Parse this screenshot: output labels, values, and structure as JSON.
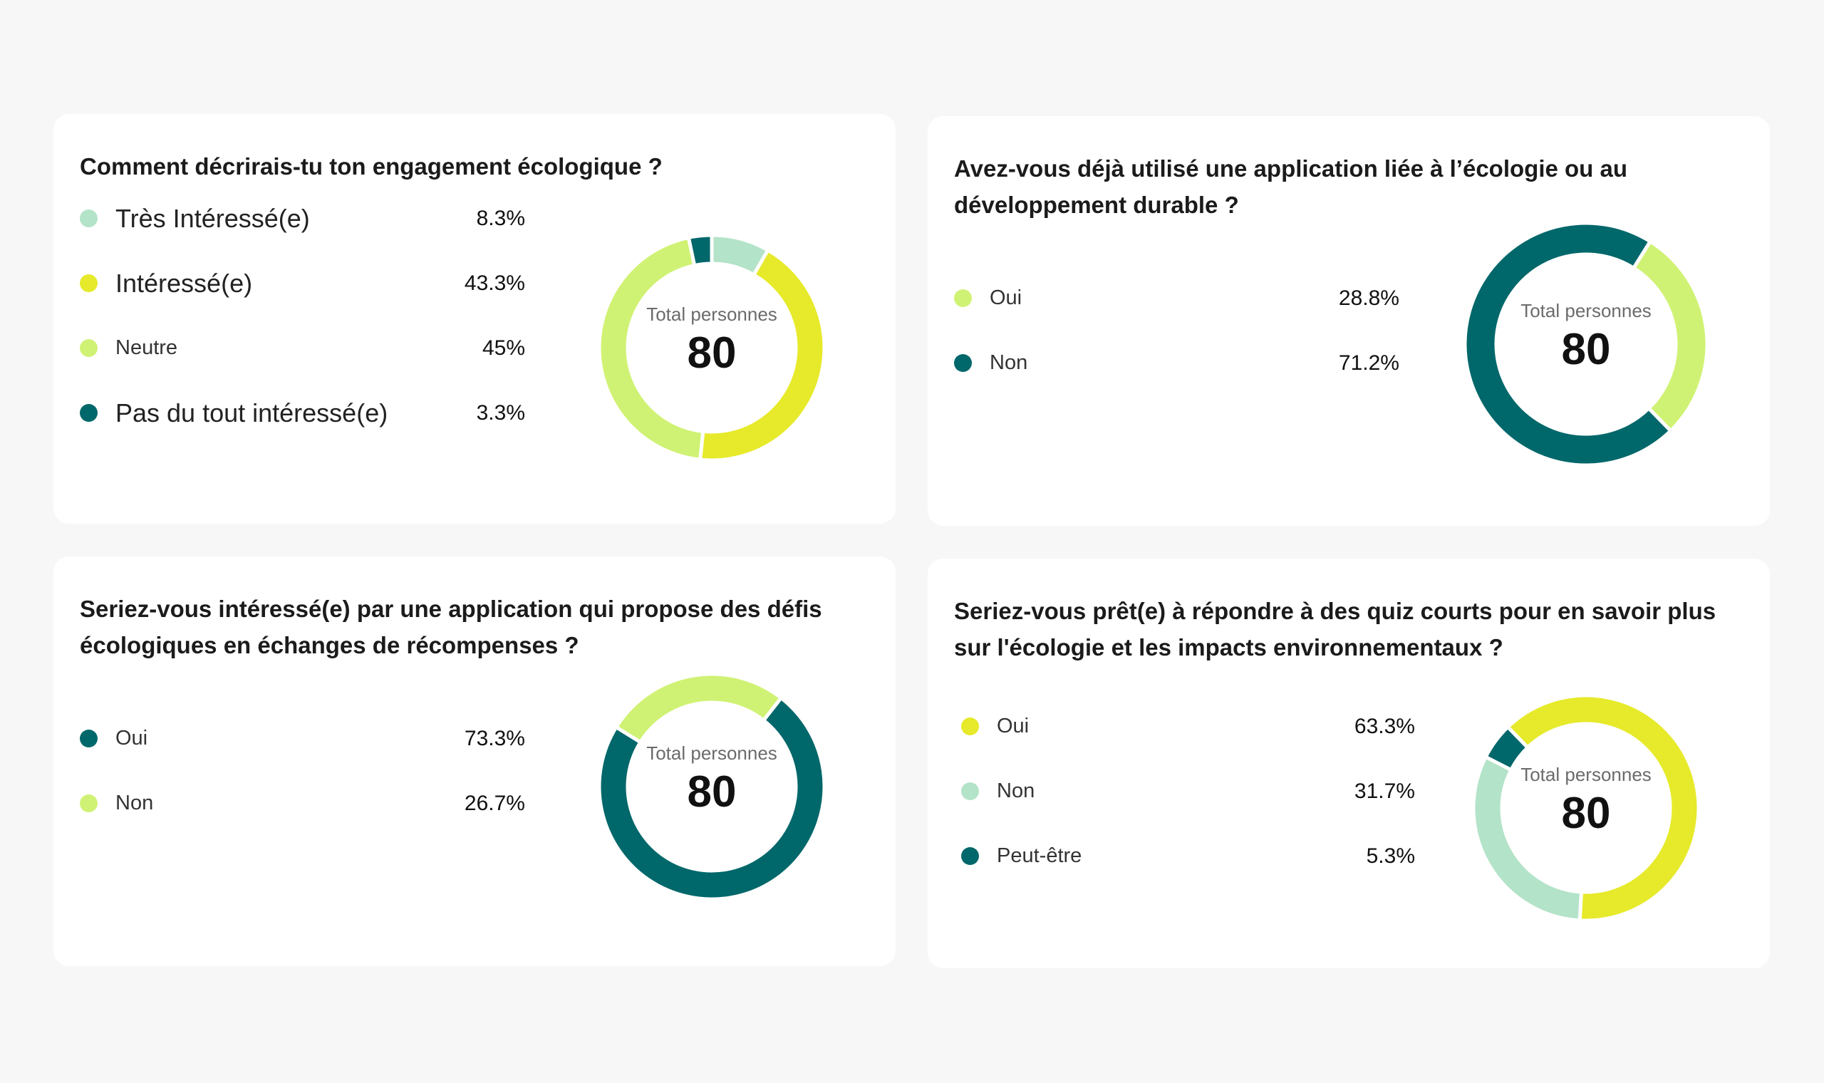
{
  "center_label": "Total personnes",
  "colors": {
    "mint": "#b3e3c8",
    "yellow": "#e6ea2a",
    "lime": "#d0f274",
    "teal": "#00676a"
  },
  "chart_data": [
    {
      "type": "pie",
      "title": "Comment décrirais-tu ton engagement écologique ?",
      "total": "80",
      "series": [
        {
          "name": "Très Intéressé(e)",
          "label": "8.3%",
          "value": 8.3,
          "color": "#b3e3c8"
        },
        {
          "name": "Intéressé(e)",
          "label": "43.3%",
          "value": 43.3,
          "color": "#e6ea2a"
        },
        {
          "name": "Neutre",
          "label": "45%",
          "value": 45,
          "color": "#d0f274"
        },
        {
          "name": "Pas du tout intéressé(e)",
          "label": "3.3%",
          "value": 3.3,
          "color": "#00676a"
        }
      ]
    },
    {
      "type": "pie",
      "title": "Avez-vous déjà utilisé une application liée à l’écologie ou au développement durable ?",
      "total": "80",
      "series": [
        {
          "name": "Oui",
          "label": "28.8%",
          "value": 28.8,
          "color": "#d0f274"
        },
        {
          "name": "Non",
          "label": "71.2%",
          "value": 71.2,
          "color": "#00676a"
        }
      ]
    },
    {
      "type": "pie",
      "title": "Seriez-vous intéressé(e) par une application qui propose des défis écologiques en échanges de récompenses ?",
      "total": "80",
      "series": [
        {
          "name": "Oui",
          "label": "73.3%",
          "value": 73.3,
          "color": "#00676a"
        },
        {
          "name": "Non",
          "label": "26.7%",
          "value": 26.7,
          "color": "#d0f274"
        }
      ]
    },
    {
      "type": "pie",
      "title": "Seriez-vous prêt(e) à répondre à des quiz courts pour en savoir plus sur l'écologie et les impacts environnementaux ?",
      "total": "80",
      "series": [
        {
          "name": "Oui",
          "label": "63.3%",
          "value": 63.3,
          "color": "#e6ea2a"
        },
        {
          "name": "Non",
          "label": "31.7%",
          "value": 31.7,
          "color": "#b3e3c8"
        },
        {
          "name": "Peut-être",
          "label": "5.3%",
          "value": 5.3,
          "color": "#00676a"
        }
      ]
    }
  ]
}
